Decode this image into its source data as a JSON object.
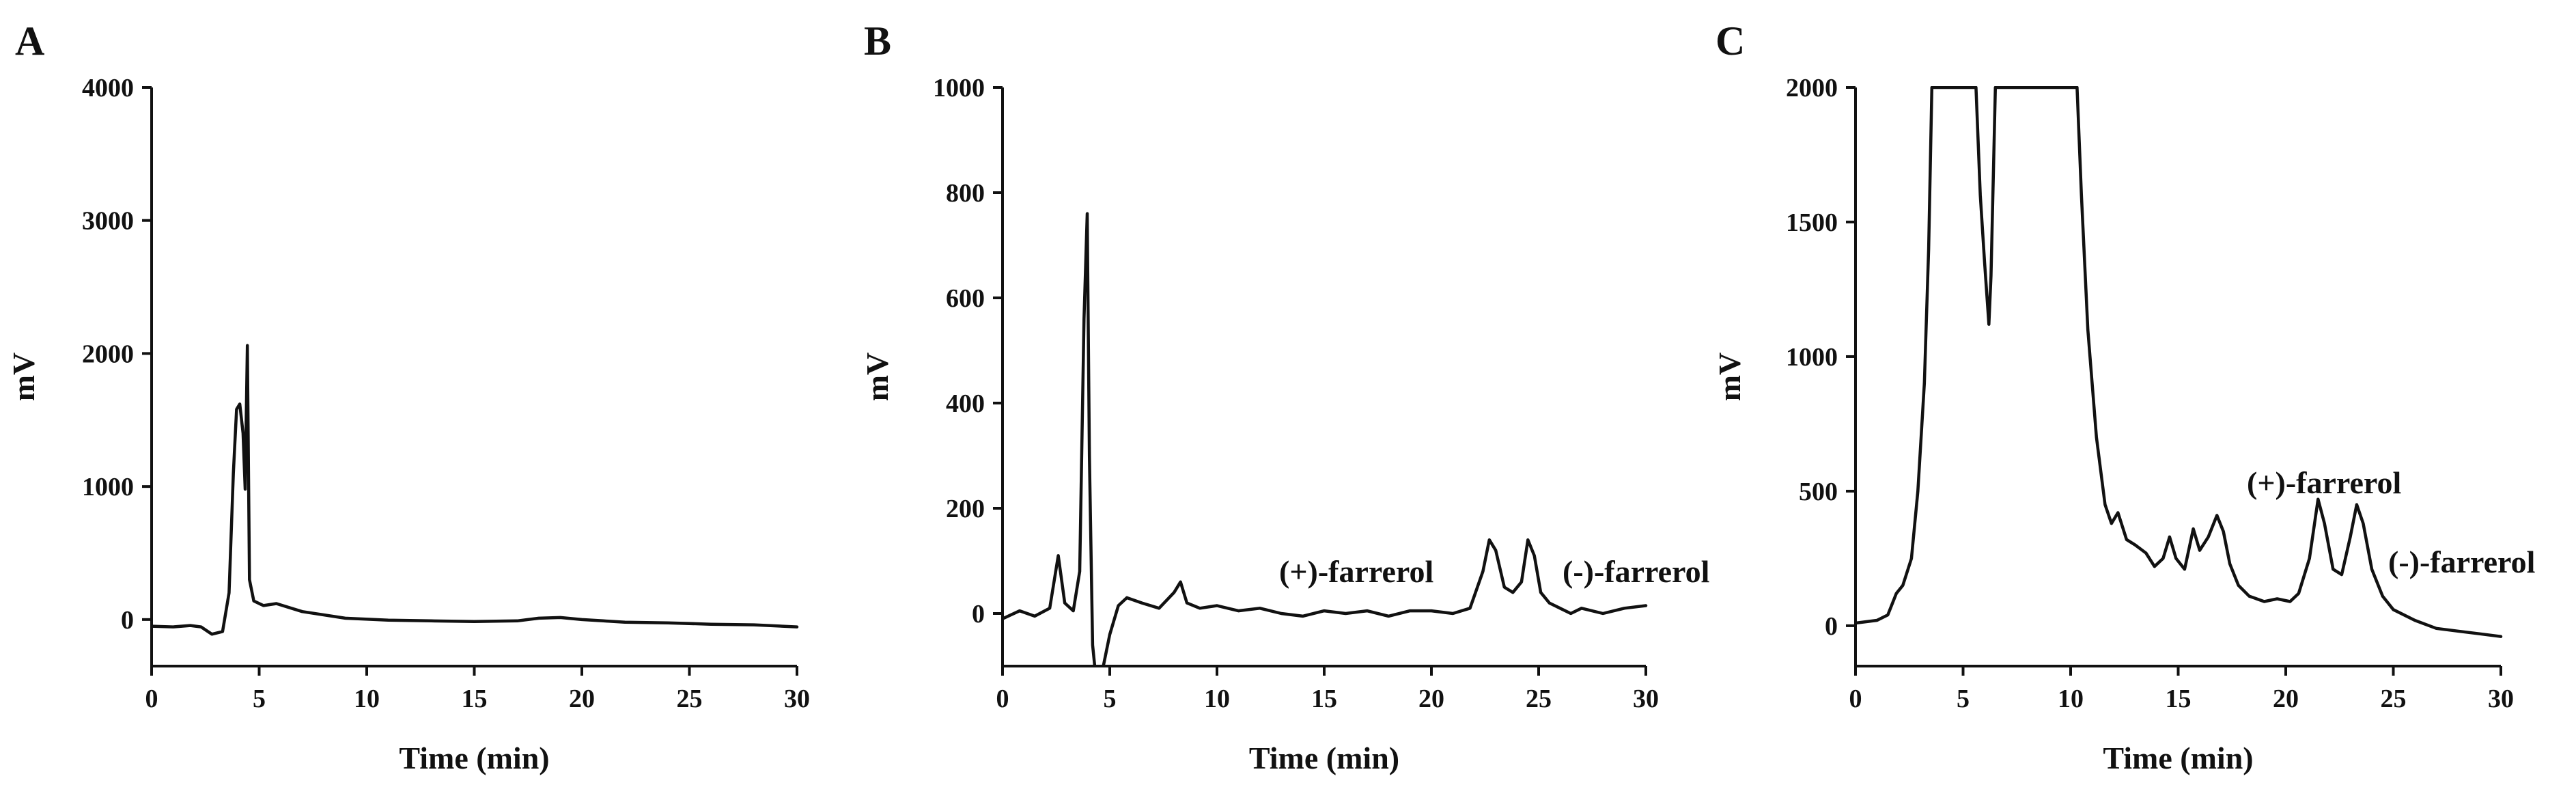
{
  "chart_data": [
    {
      "type": "line",
      "panel_label": "A",
      "xlabel": "Time (min)",
      "ylabel": "mV",
      "xlim": [
        0,
        30
      ],
      "ylim": [
        -350,
        4000
      ],
      "x_ticks": [
        "0",
        "5",
        "10",
        "15",
        "20",
        "25",
        "30"
      ],
      "y_ticks": [
        "0",
        "1000",
        "2000",
        "3000",
        "4000"
      ],
      "grid": false,
      "annotations": [],
      "series": [
        {
          "x": [
            0,
            1,
            1.8,
            2.3,
            2.8,
            3.3,
            3.6,
            3.8,
            3.95,
            4.1,
            4.25,
            4.35,
            4.45,
            4.55,
            4.75,
            5.2,
            5.8,
            7,
            9,
            11,
            13,
            15,
            17,
            18,
            19,
            20,
            21,
            22,
            24,
            26,
            28,
            30
          ],
          "y": [
            -50,
            -55,
            -45,
            -55,
            -110,
            -90,
            200,
            1100,
            1580,
            1620,
            1400,
            980,
            2060,
            300,
            140,
            105,
            120,
            60,
            10,
            -5,
            -10,
            -15,
            -10,
            10,
            15,
            0,
            -10,
            -20,
            -25,
            -35,
            -40,
            -55
          ]
        }
      ]
    },
    {
      "type": "line",
      "panel_label": "B",
      "xlabel": "Time (min)",
      "ylabel": "mV",
      "xlim": [
        0,
        30
      ],
      "ylim": [
        -100,
        1000
      ],
      "x_ticks": [
        "0",
        "5",
        "10",
        "15",
        "20",
        "25",
        "30"
      ],
      "y_ticks": [
        "0",
        "200",
        "400",
        "600",
        "800",
        "1000"
      ],
      "grid": false,
      "annotations": [
        "(+)-farrerol",
        "(-)-farrerol"
      ],
      "series": [
        {
          "x": [
            0,
            0.8,
            1.5,
            2.2,
            2.6,
            2.9,
            3.3,
            3.6,
            3.8,
            3.95,
            4.05,
            4.2,
            4.3,
            4.45,
            4.7,
            5,
            5.4,
            5.8,
            6.5,
            7.3,
            8,
            8.3,
            8.6,
            9.2,
            10,
            11,
            12,
            13,
            14,
            15,
            16,
            17,
            18,
            19,
            20,
            21,
            21.8,
            22.4,
            22.7,
            23,
            23.4,
            23.8,
            24.2,
            24.5,
            24.8,
            25.1,
            25.5,
            26,
            26.5,
            27,
            28,
            29,
            30
          ],
          "y": [
            -10,
            5,
            -5,
            10,
            110,
            20,
            5,
            80,
            560,
            760,
            300,
            -60,
            -100,
            -110,
            -100,
            -40,
            15,
            30,
            20,
            10,
            40,
            60,
            20,
            10,
            15,
            5,
            10,
            0,
            -5,
            5,
            0,
            5,
            -5,
            5,
            5,
            0,
            10,
            80,
            140,
            120,
            50,
            40,
            60,
            140,
            110,
            40,
            20,
            10,
            0,
            10,
            0,
            10,
            15
          ]
        }
      ]
    },
    {
      "type": "line",
      "panel_label": "C",
      "xlabel": "Time (min)",
      "ylabel": "mV",
      "xlim": [
        0,
        30
      ],
      "ylim": [
        -150,
        2000
      ],
      "x_ticks": [
        "0",
        "5",
        "10",
        "15",
        "20",
        "25",
        "30"
      ],
      "y_ticks": [
        "0",
        "500",
        "1000",
        "1500",
        "2000"
      ],
      "grid": false,
      "annotations": [
        "(+)-farrerol",
        "(-)-farrerol"
      ],
      "series": [
        {
          "x": [
            0,
            1,
            1.5,
            1.9,
            2.2,
            2.6,
            2.9,
            3.2,
            3.4,
            3.55,
            5.6,
            5.8,
            6,
            6.2,
            6.3,
            6.5,
            10.3,
            10.5,
            10.8,
            11.2,
            11.6,
            11.9,
            12.2,
            12.6,
            13,
            13.5,
            13.9,
            14.3,
            14.6,
            14.9,
            15.3,
            15.7,
            16,
            16.4,
            16.8,
            17.1,
            17.4,
            17.8,
            18.3,
            19,
            19.6,
            20.2,
            20.6,
            21.1,
            21.5,
            21.8,
            22.2,
            22.6,
            23,
            23.3,
            23.6,
            24,
            24.5,
            25,
            26,
            27,
            28,
            29,
            30
          ],
          "y": [
            10,
            20,
            40,
            120,
            150,
            250,
            500,
            900,
            1400,
            2000,
            2000,
            1600,
            1350,
            1120,
            1300,
            2000,
            2000,
            1600,
            1100,
            700,
            450,
            380,
            420,
            320,
            300,
            270,
            220,
            250,
            330,
            250,
            210,
            360,
            280,
            330,
            410,
            350,
            230,
            150,
            110,
            90,
            100,
            90,
            120,
            250,
            470,
            380,
            210,
            190,
            330,
            450,
            380,
            210,
            110,
            60,
            20,
            -10,
            -20,
            -30,
            -40
          ]
        }
      ]
    }
  ]
}
